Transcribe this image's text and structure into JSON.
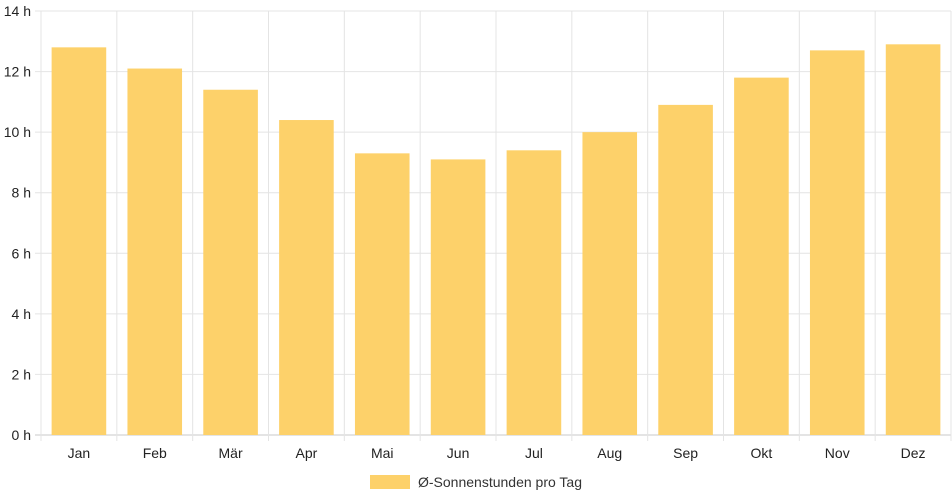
{
  "chart_data": {
    "type": "bar",
    "categories": [
      "Jan",
      "Feb",
      "Mär",
      "Apr",
      "Mai",
      "Jun",
      "Jul",
      "Aug",
      "Sep",
      "Okt",
      "Nov",
      "Dez"
    ],
    "series": [
      {
        "name": "Ø-Sonnenstunden pro Tag",
        "values": [
          12.8,
          12.1,
          11.4,
          10.4,
          9.3,
          9.1,
          9.4,
          10.0,
          10.9,
          11.8,
          12.7,
          12.9
        ],
        "color": "#fdd16a"
      }
    ],
    "y_ticks": [
      "0 h",
      "2 h",
      "4 h",
      "6 h",
      "8 h",
      "10 h",
      "12 h",
      "14 h"
    ],
    "ylim": [
      0,
      14
    ],
    "grid": true,
    "legend_position": "bottom"
  }
}
